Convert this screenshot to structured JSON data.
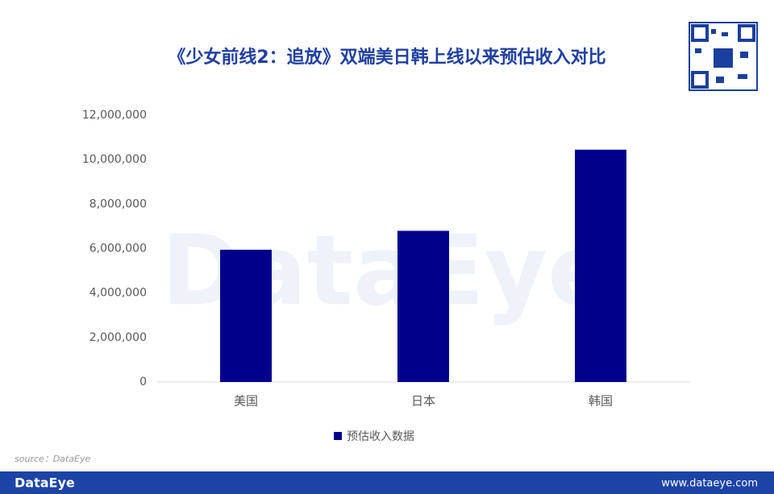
{
  "chart_data": {
    "type": "bar",
    "title": "《少女前线2：追放》双端美日韩上线以来预估收入对比",
    "categories": [
      "美国",
      "日本",
      "韩国"
    ],
    "series": [
      {
        "name": "预估收入数据",
        "color": "#00008b",
        "values": [
          5950000,
          6800000,
          10450000
        ]
      }
    ],
    "ylim": [
      0,
      12000000
    ],
    "yticks": [
      0,
      {
        "value": 2000000,
        "label": "2,000,000"
      },
      {
        "value": 4000000,
        "label": "4,000,000"
      },
      {
        "value": 6000000,
        "label": "6,000,000"
      },
      {
        "value": 8000000,
        "label": "8,000,000"
      },
      {
        "value": 10000000,
        "label": "10,000,000"
      },
      {
        "value": 12000000,
        "label": "12,000,000"
      }
    ],
    "grid": false,
    "legend": "bottom",
    "source": "source：DataEye",
    "watermark": "DataEye"
  },
  "footer": {
    "brand": "DataEye",
    "url": "www.dataeye.com"
  }
}
